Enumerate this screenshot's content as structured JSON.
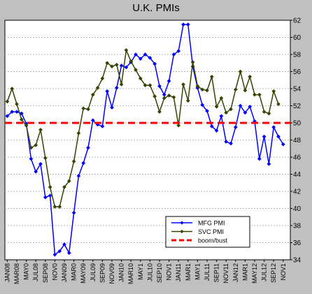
{
  "chart_data": {
    "type": "line",
    "title": "U.K. PMIs",
    "ylim": [
      34,
      62
    ],
    "yticks": [
      34,
      36,
      38,
      40,
      42,
      44,
      46,
      48,
      50,
      52,
      54,
      56,
      58,
      60,
      62
    ],
    "y_axis_side": "right",
    "grid": "horizontal dashed",
    "legend_position": "bottom-right",
    "x_start": "JAN08",
    "x_tick_labels": [
      "JAN08",
      "MAR08",
      "MAY0",
      "JUL08",
      "SEP08",
      "NOV0",
      "JAN09",
      "MAR0",
      "MAY09",
      "JUL09",
      "SEP09",
      "NOV09",
      "JAN10",
      "MAR10",
      "MAY1",
      "JUL10",
      "SEP10",
      "NOV1",
      "JAN11",
      "MAR1",
      "MAY1",
      "JUL11",
      "SEP11",
      "NOV11",
      "JAN12",
      "MAR1",
      "MAY12",
      "JUL12",
      "SEP12",
      "NOV1"
    ],
    "series": [
      {
        "name": "MFG PMI",
        "color": "#0000ff",
        "marker": "diamond",
        "values": [
          50.8,
          51.3,
          51.3,
          51.1,
          49.9,
          45.8,
          44.3,
          45.2,
          41.3,
          41.5,
          34.6,
          35.0,
          35.8,
          34.8,
          39.5,
          43.8,
          45.3,
          47.1,
          50.3,
          49.8,
          49.6,
          53.7,
          51.8,
          54.1,
          56.7,
          56.5,
          57.1,
          58.0,
          57.5,
          58.0,
          57.6,
          56.9,
          54.3,
          53.3,
          54.9,
          58.0,
          58.4,
          61.5,
          61.5,
          56.6,
          54.1,
          52.1,
          51.4,
          49.6,
          49.1,
          50.8,
          47.8,
          47.6,
          49.5,
          52.0,
          51.2,
          51.9,
          50.2,
          45.8,
          48.4,
          45.2,
          49.5,
          48.4,
          47.5
        ]
      },
      {
        "name": "SVC PMI",
        "color": "#334400",
        "marker": "diamond",
        "values": [
          52.5,
          54.0,
          52.2,
          50.4,
          49.7,
          47.1,
          47.4,
          49.2,
          45.9,
          42.5,
          40.2,
          40.2,
          42.5,
          43.2,
          45.5,
          48.8,
          51.7,
          51.6,
          53.3,
          54.1,
          55.2,
          57.0,
          56.6,
          56.8,
          54.5,
          58.5,
          57.2,
          56.2,
          55.2,
          54.4,
          54.4,
          53.1,
          51.3,
          52.9,
          53.2,
          53.0,
          49.7,
          54.5,
          52.6,
          57.1,
          54.3,
          53.9,
          53.8,
          55.4,
          51.9,
          52.9,
          51.2,
          51.6,
          53.9,
          56.0,
          53.8,
          55.4,
          53.3,
          53.3,
          51.3,
          51.1,
          53.7,
          52.2
        ]
      },
      {
        "name": "boom/bust",
        "color": "#ff0000",
        "style": "dashed",
        "values": [
          50,
          50
        ]
      }
    ]
  }
}
